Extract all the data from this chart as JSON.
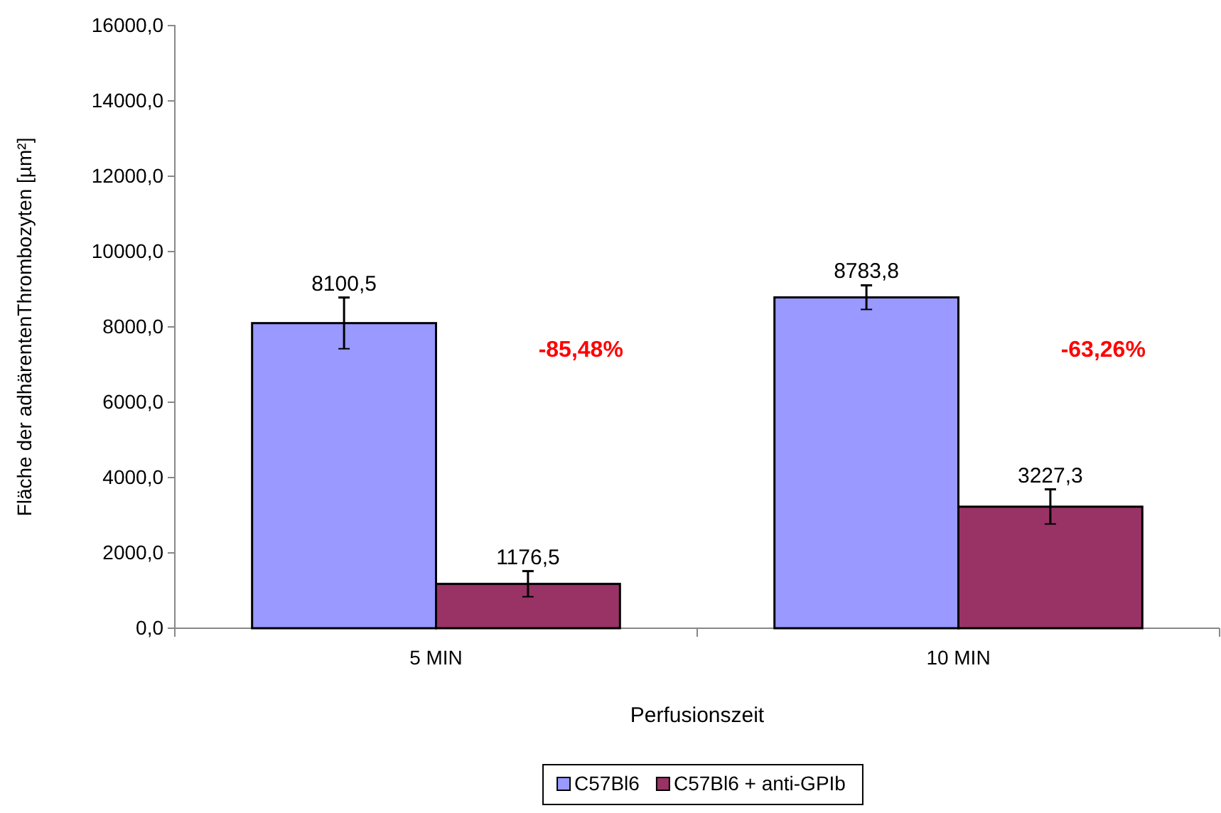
{
  "chart_data": {
    "type": "bar",
    "xlabel": "Perfusionszeit",
    "ylabel": "Fläche der adhärentenThrombozyten [µm²]",
    "categories": [
      "5 MIN",
      "10 MIN"
    ],
    "series": [
      {
        "name": "C57Bl6",
        "color": "#9999ff",
        "values": [
          8100.5,
          8783.8
        ],
        "errors": [
          680,
          320
        ],
        "value_labels": [
          "8100,5",
          "8783,8"
        ]
      },
      {
        "name": "C57Bl6 + anti-GPIb",
        "color": "#993366",
        "values": [
          1176.5,
          3227.3
        ],
        "errors": [
          340,
          460
        ],
        "value_labels": [
          "1176,5",
          "3227,3"
        ]
      }
    ],
    "ylim": [
      0,
      16000
    ],
    "yticks": [
      {
        "value": 0,
        "label": "0,0"
      },
      {
        "value": 2000,
        "label": "2000,0"
      },
      {
        "value": 4000,
        "label": "4000,0"
      },
      {
        "value": 6000,
        "label": "6000,0"
      },
      {
        "value": 8000,
        "label": "8000,0"
      },
      {
        "value": 10000,
        "label": "10000,0"
      },
      {
        "value": 12000,
        "label": "12000,0"
      },
      {
        "value": 14000,
        "label": "14000,0"
      },
      {
        "value": 16000,
        "label": "16000,0"
      }
    ],
    "annotations": [
      "-85,48%",
      "-63,26%"
    ],
    "legend": "bottom",
    "grid": false
  }
}
